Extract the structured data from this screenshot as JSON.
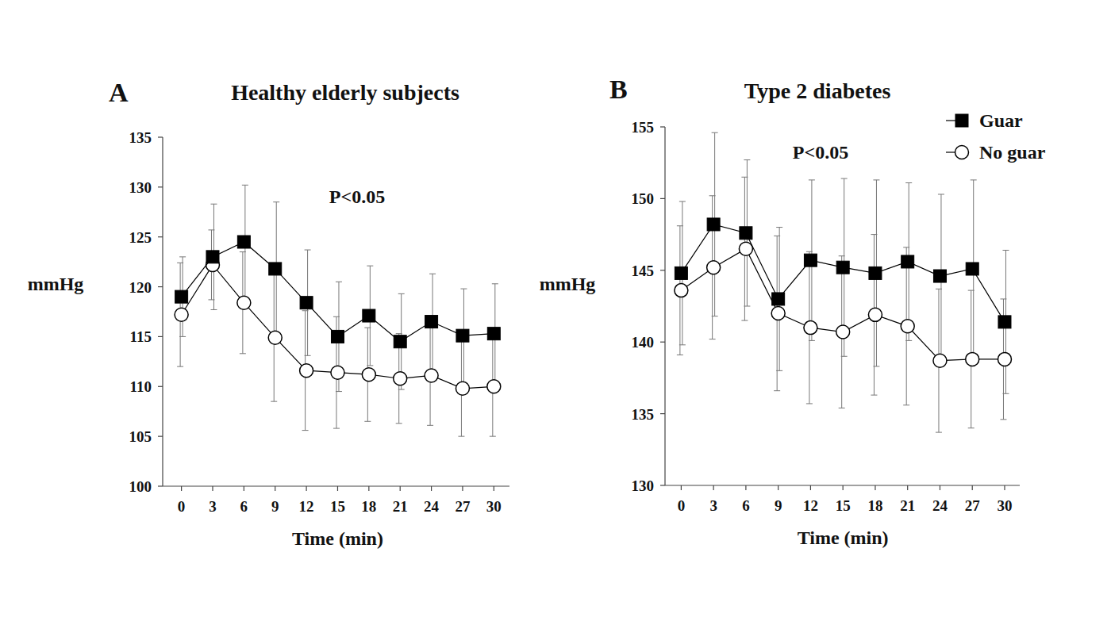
{
  "chart_data": [
    {
      "type": "line",
      "panel": "A",
      "title": "Healthy elderly subjects",
      "x_label": "Time (min)",
      "y_label": "mmHg",
      "annotations": [
        "P<0.05"
      ],
      "x": [
        0,
        3,
        6,
        9,
        12,
        15,
        18,
        21,
        24,
        27,
        30
      ],
      "xlim": [
        -1.8,
        31.5
      ],
      "xticks": [
        0,
        3,
        6,
        9,
        12,
        15,
        18,
        21,
        24,
        27,
        30
      ],
      "ylim": [
        100,
        135
      ],
      "yticks": [
        100,
        105,
        110,
        115,
        120,
        125,
        130,
        135
      ],
      "grid": false,
      "series": [
        {
          "name": "Guar",
          "color": "#000000",
          "marker": "square",
          "line_style": "solid",
          "values": [
            119,
            123,
            124.5,
            121.8,
            118.4,
            115,
            117.1,
            114.5,
            116.5,
            115.1,
            115.3
          ],
          "errors": [
            4,
            5.3,
            5.7,
            6.7,
            5.3,
            5.5,
            5,
            4.8,
            4.8,
            4.7,
            5
          ]
        },
        {
          "name": "No guar",
          "color": "#000000",
          "marker": "open-circle",
          "line_style": "solid",
          "values": [
            117.2,
            122.2,
            118.4,
            114.9,
            111.6,
            111.4,
            111.2,
            110.8,
            111.1,
            109.8,
            110
          ],
          "errors": [
            5.2,
            3.5,
            5.1,
            6.4,
            6,
            5.6,
            4.7,
            4.5,
            5,
            4.8,
            5
          ]
        }
      ]
    },
    {
      "type": "line",
      "panel": "B",
      "title": "Type 2 diabetes",
      "x_label": "Time (min)",
      "y_label": "mmHg",
      "annotations": [
        "P<0.05"
      ],
      "x": [
        0,
        3,
        6,
        9,
        12,
        15,
        18,
        21,
        24,
        27,
        30
      ],
      "xlim": [
        -1.5,
        31.4
      ],
      "xticks": [
        0,
        3,
        6,
        9,
        12,
        15,
        18,
        21,
        24,
        27,
        30
      ],
      "ylim": [
        130,
        155
      ],
      "yticks": [
        130,
        135,
        140,
        145,
        150,
        155
      ],
      "grid": false,
      "legend": "upper right",
      "series": [
        {
          "name": "Guar",
          "color": "#000000",
          "marker": "square",
          "line_style": "solid",
          "values": [
            144.8,
            148.2,
            147.6,
            143,
            145.7,
            145.2,
            144.8,
            145.6,
            144.6,
            145.1,
            141.4
          ],
          "errors": [
            5,
            6.4,
            5.1,
            5,
            5.6,
            6.2,
            6.5,
            5.5,
            5.7,
            6.2,
            5
          ]
        },
        {
          "name": "No guar",
          "color": "#000000",
          "marker": "open-circle",
          "line_style": "solid",
          "values": [
            143.6,
            145.2,
            146.5,
            142,
            141,
            140.7,
            141.9,
            141.1,
            138.7,
            138.8,
            138.8
          ],
          "errors": [
            4.5,
            5,
            5,
            5.4,
            5.3,
            5.3,
            5.6,
            5.5,
            5,
            4.8,
            4.2
          ]
        }
      ]
    }
  ]
}
